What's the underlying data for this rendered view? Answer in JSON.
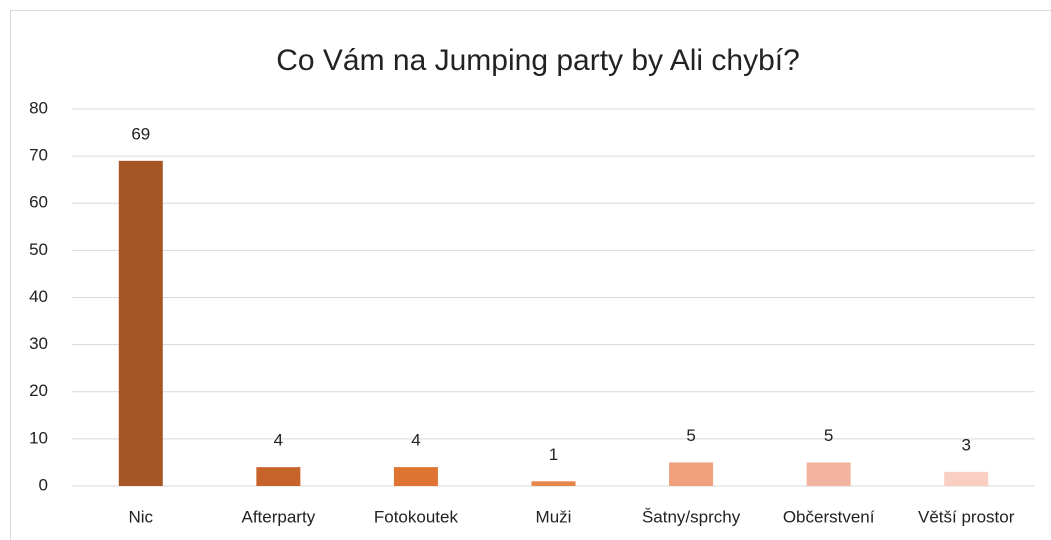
{
  "chart_data": {
    "type": "bar",
    "title": "Co Vám na Jumping party by Ali chybí?",
    "categories": [
      "Nic",
      "Afterparty",
      "Fotokoutek",
      "Muži",
      "Šatny/sprchy",
      "Občerstvení",
      "Větší prostor"
    ],
    "values": [
      69,
      4,
      4,
      1,
      5,
      5,
      3
    ],
    "colors": [
      "#a65625",
      "#c6632b",
      "#df7432",
      "#e8874a",
      "#f0a07d",
      "#f3b49f",
      "#f8cfc1"
    ],
    "ylim": [
      0,
      80
    ],
    "yticks": [
      0,
      10,
      20,
      30,
      40,
      50,
      60,
      70,
      80
    ],
    "grid": true
  }
}
